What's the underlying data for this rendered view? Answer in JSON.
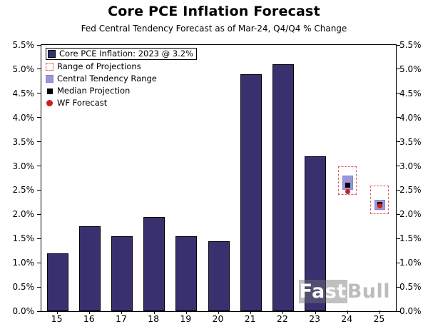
{
  "title": "Core PCE Inflation Forecast",
  "subtitle": "Fed Central Tendency Forecast as of Mar-24, Q4/Q4 % Change",
  "watermark_part1": "Fast",
  "watermark_part2": "Bull",
  "colors": {
    "bar": "#38306f",
    "range_box": "#e06060",
    "central_tendency": "#9d95d8",
    "median": "#000000",
    "wf_forecast": "#cc2020"
  },
  "legend": [
    {
      "label": "Core PCE Inflation: 2023 @ 3.2%",
      "marker": "bar"
    },
    {
      "label": "Range of Projections",
      "marker": "range"
    },
    {
      "label": "Central Tendency Range",
      "marker": "central"
    },
    {
      "label": "Median Projection",
      "marker": "median"
    },
    {
      "label": "WF Forecast",
      "marker": "wf"
    }
  ],
  "chart_data": {
    "type": "bar",
    "title": "Core PCE Inflation Forecast",
    "subtitle": "Fed Central Tendency Forecast as of Mar-24, Q4/Q4 % Change",
    "categories": [
      "15",
      "16",
      "17",
      "18",
      "19",
      "20",
      "21",
      "22",
      "23",
      "24",
      "25"
    ],
    "values": [
      1.2,
      1.75,
      1.55,
      1.95,
      1.55,
      1.45,
      4.9,
      5.1,
      3.2,
      null,
      null
    ],
    "forecasts": [
      {
        "year": "24",
        "range": [
          2.4,
          3.0
        ],
        "central_tendency": [
          2.5,
          2.8
        ],
        "median": 2.6,
        "wf_forecast": 2.5
      },
      {
        "year": "25",
        "range": [
          2.0,
          2.6
        ],
        "central_tendency": [
          2.1,
          2.3
        ],
        "median": 2.2,
        "wf_forecast": 2.2
      }
    ],
    "ylim": [
      0,
      5.5
    ],
    "ytick_step": 0.5,
    "yticks": [
      "0.0%",
      "0.5%",
      "1.0%",
      "1.5%",
      "2.0%",
      "2.5%",
      "3.0%",
      "3.5%",
      "4.0%",
      "4.5%",
      "5.0%",
      "5.5%"
    ],
    "xlabel": "",
    "ylabel": "",
    "grid": false,
    "legend_position": "upper-left"
  }
}
